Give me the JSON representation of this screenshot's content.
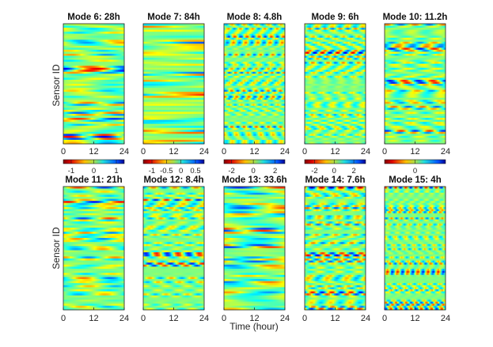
{
  "chart_data": {
    "type": "heatmap",
    "figure_xlabel": "Time (hour)",
    "figure_ylabel": "Sensor ID",
    "x_ticks": [
      "0",
      "12",
      "24"
    ],
    "xlim": [
      0,
      24
    ],
    "colormap": "jet",
    "panels": [
      {
        "title": "Mode 6: 28h",
        "period_h": 28,
        "colorbar_ticks": [
          "-1",
          "0",
          "1"
        ],
        "colorbar_values": [
          -1,
          0,
          1
        ],
        "clim": [
          -1.35,
          1.35
        ]
      },
      {
        "title": "Mode 7: 84h",
        "period_h": 84,
        "colorbar_ticks": [
          "-1",
          "-0.5",
          "0",
          "0.5"
        ],
        "colorbar_values": [
          -1,
          -0.5,
          0,
          0.5
        ],
        "clim": [
          -1.3,
          0.8
        ]
      },
      {
        "title": "Mode 8: 4.8h",
        "period_h": 4.8,
        "colorbar_ticks": [
          "-2",
          "0",
          "2"
        ],
        "colorbar_values": [
          -2,
          0,
          2
        ],
        "clim": [
          -2.7,
          2.9
        ]
      },
      {
        "title": "Mode 9: 6h",
        "period_h": 6,
        "colorbar_ticks": [
          "-2",
          "0",
          "2"
        ],
        "colorbar_values": [
          -2,
          0,
          2
        ],
        "clim": [
          -3,
          3.2
        ]
      },
      {
        "title": "Mode 10: 11.2h",
        "period_h": 11.2,
        "colorbar_ticks": [
          "0"
        ],
        "colorbar_values": [
          0
        ],
        "clim": [
          -1,
          1
        ]
      },
      {
        "title": "Mode 11: 21h",
        "period_h": 21,
        "colorbar_ticks": [],
        "colorbar_values": [],
        "clim": [
          -1,
          1
        ]
      },
      {
        "title": "Mode 12: 8.4h",
        "period_h": 8.4,
        "colorbar_ticks": [],
        "colorbar_values": [],
        "clim": [
          -1,
          1
        ]
      },
      {
        "title": "Mode 13: 33.6h",
        "period_h": 33.6,
        "colorbar_ticks": [],
        "colorbar_values": [],
        "clim": [
          -1,
          1
        ]
      },
      {
        "title": "Mode 14: 7.6h",
        "period_h": 7.6,
        "colorbar_ticks": [],
        "colorbar_values": [],
        "clim": [
          -1,
          1
        ]
      },
      {
        "title": "Mode 15: 4h",
        "period_h": 4,
        "colorbar_ticks": [],
        "colorbar_values": [],
        "clim": [
          -1,
          1
        ]
      }
    ]
  }
}
